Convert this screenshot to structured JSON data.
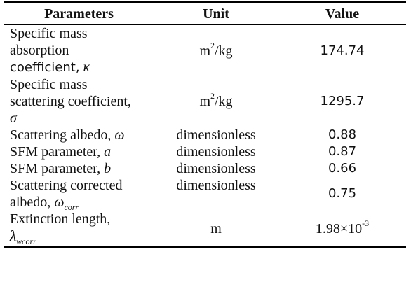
{
  "table": {
    "headers": [
      "Parameters",
      "Unit",
      "Value"
    ],
    "rows": [
      {
        "param_lines": [
          "Specific mass",
          "absorption",
          "coefficient,"
        ],
        "symbol": "κ",
        "unit": "m",
        "unit_sup": "2",
        "unit_rest": "/kg",
        "value": "174.74"
      },
      {
        "param_lines": [
          "Specific mass",
          "scattering coefficient,"
        ],
        "symbol": "σ",
        "unit": "m",
        "unit_sup": "2",
        "unit_rest": "/kg",
        "value": "1295.7"
      },
      {
        "param": "Scattering albedo,",
        "symbol": "ω",
        "unit": "dimensionless",
        "value": "0.88"
      },
      {
        "param": "SFM parameter,",
        "symbol": "a",
        "unit": "dimensionless",
        "value": "0.87"
      },
      {
        "param": "SFM parameter,",
        "symbol": "b",
        "unit": "dimensionless",
        "value": "0.66"
      },
      {
        "param_lines": [
          "Scattering corrected",
          "albedo,"
        ],
        "symbol": "ω",
        "symbol_sub": "corr",
        "unit": "dimensionless",
        "value": "0.75"
      },
      {
        "param": "Extinction length,",
        "symbol": "λ",
        "symbol_sub": "wcorr",
        "unit": "m",
        "value_base": "1.98×10",
        "value_sup": "-3"
      }
    ]
  }
}
